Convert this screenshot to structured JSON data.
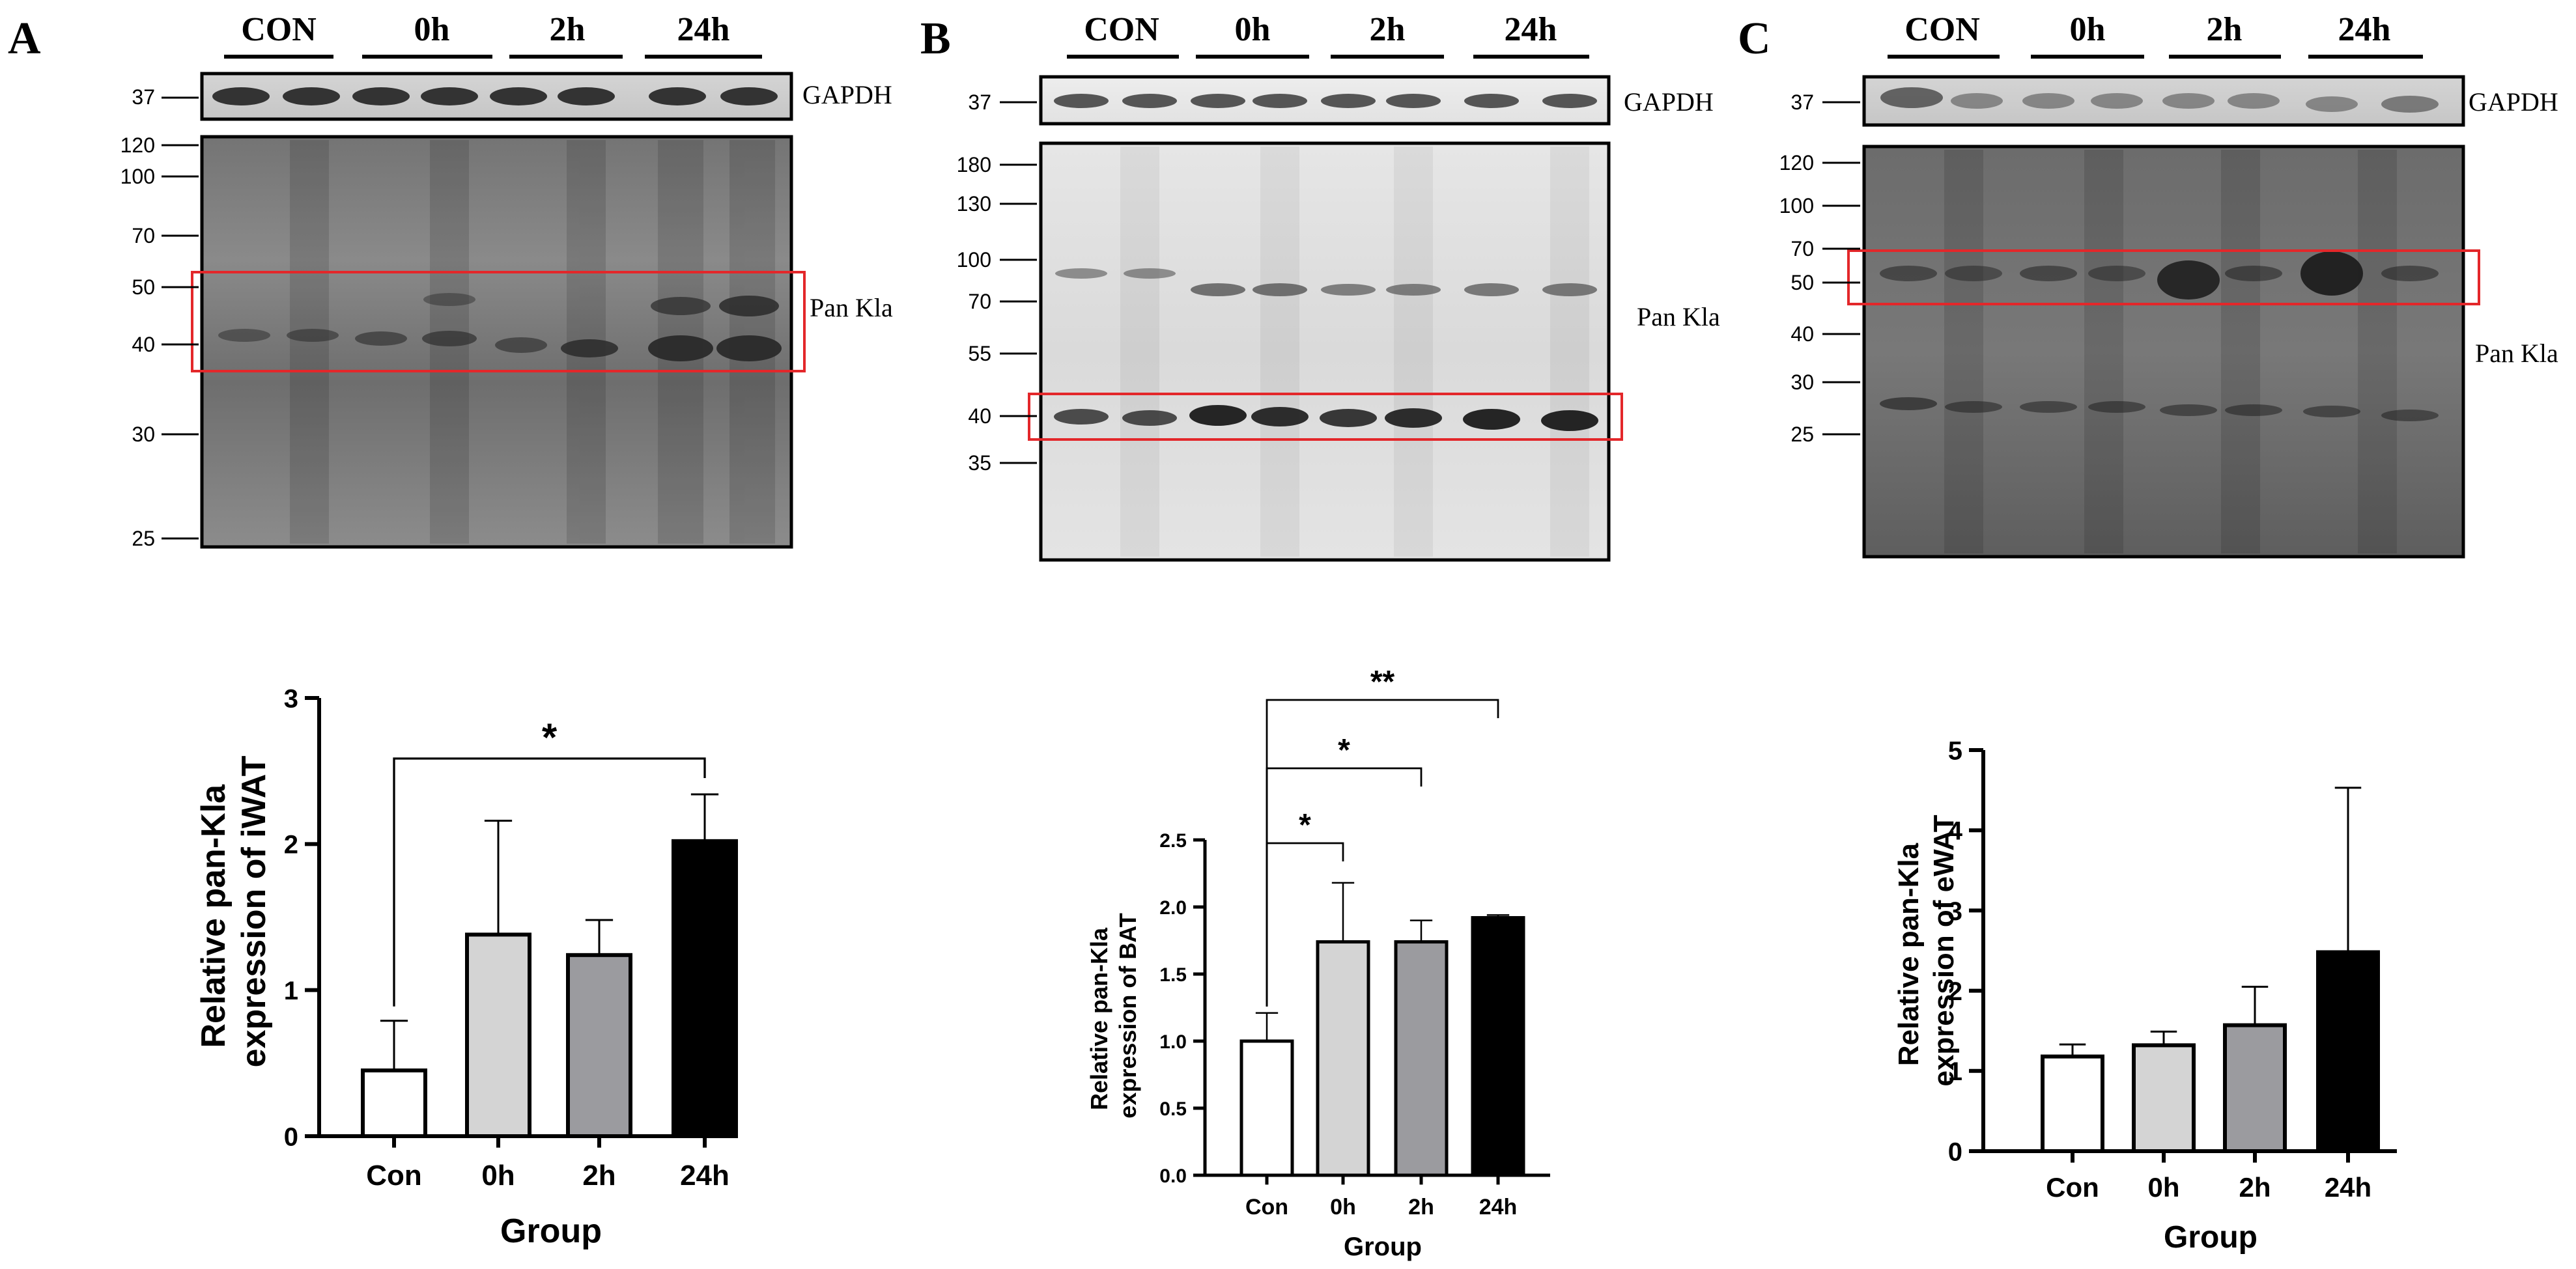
{
  "panels": [
    {
      "letter": "A",
      "groups": [
        "CON",
        "0h",
        "2h",
        "24h"
      ],
      "gapdh": {
        "label": "GAPDH",
        "marker": "37"
      },
      "blot": {
        "label": "Pan Kla",
        "markers": [
          "120",
          "100",
          "70",
          "50",
          "40",
          "30",
          "25"
        ]
      }
    },
    {
      "letter": "B",
      "groups": [
        "CON",
        "0h",
        "2h",
        "24h"
      ],
      "gapdh": {
        "label": "GAPDH",
        "marker": "37"
      },
      "blot": {
        "label": "Pan Kla",
        "markers": [
          "180",
          "130",
          "100",
          "70",
          "55",
          "40",
          "35"
        ]
      }
    },
    {
      "letter": "C",
      "groups": [
        "CON",
        "0h",
        "2h",
        "24h"
      ],
      "gapdh": {
        "label": "GAPDH",
        "marker": "37"
      },
      "blot": {
        "label": "Pan Kla",
        "markers": [
          "120",
          "100",
          "70",
          "50",
          "40",
          "30",
          "25"
        ]
      }
    }
  ],
  "chart_data": [
    {
      "type": "bar",
      "panel": "A",
      "categories": [
        "Con",
        "0h",
        "2h",
        "24h"
      ],
      "values": [
        0.45,
        1.38,
        1.24,
        2.02
      ],
      "errors": [
        0.34,
        0.78,
        0.24,
        0.32
      ],
      "fills": [
        "#ffffff",
        "#d4d4d4",
        "#9b9b9f",
        "#000000"
      ],
      "ylim": [
        0,
        3
      ],
      "yticks": [
        "0",
        "1",
        "2",
        "3"
      ],
      "ylabel": [
        "Relative pan-Kla",
        "expression of iWAT"
      ],
      "xlabel": "Group",
      "significance": [
        {
          "from": "Con",
          "to": "24h",
          "label": "*"
        }
      ]
    },
    {
      "type": "bar",
      "panel": "B",
      "categories": [
        "Con",
        "0h",
        "2h",
        "24h"
      ],
      "values": [
        1.0,
        1.74,
        1.74,
        1.92
      ],
      "errors": [
        0.21,
        0.44,
        0.16,
        0.02
      ],
      "fills": [
        "#ffffff",
        "#d4d4d4",
        "#9b9b9f",
        "#000000"
      ],
      "ylim": [
        0,
        2.5
      ],
      "yticks": [
        "0.0",
        "0.5",
        "1.0",
        "1.5",
        "2.0",
        "2.5"
      ],
      "ylabel": [
        "Relative pan-Kla",
        "expression of BAT"
      ],
      "xlabel": "Group",
      "significance": [
        {
          "from": "Con",
          "to": "0h",
          "label": "*"
        },
        {
          "from": "Con",
          "to": "2h",
          "label": "*"
        },
        {
          "from": "Con",
          "to": "24h",
          "label": "**"
        }
      ]
    },
    {
      "type": "bar",
      "panel": "C",
      "categories": [
        "Con",
        "0h",
        "2h",
        "24h"
      ],
      "values": [
        1.18,
        1.32,
        1.57,
        2.48
      ],
      "errors": [
        0.15,
        0.17,
        0.48,
        2.05
      ],
      "fills": [
        "#ffffff",
        "#d4d4d4",
        "#9b9b9f",
        "#000000"
      ],
      "ylim": [
        0,
        5
      ],
      "yticks": [
        "0",
        "1",
        "2",
        "3",
        "4",
        "5"
      ],
      "ylabel": [
        "Relative pan-Kla",
        "expression of eWAT"
      ],
      "xlabel": "Group",
      "significance": []
    }
  ]
}
